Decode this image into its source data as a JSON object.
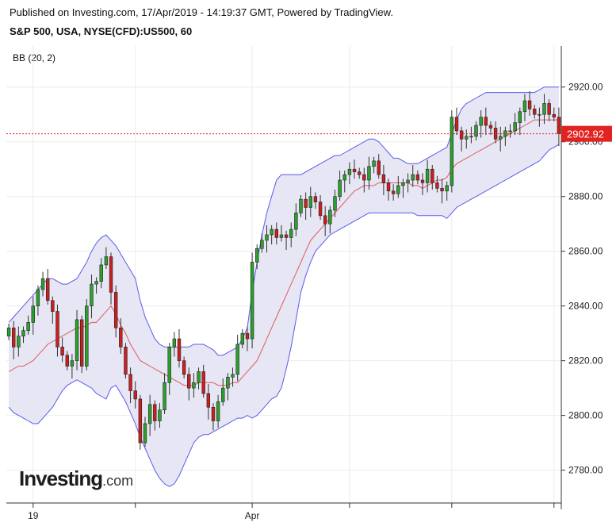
{
  "header": {
    "published": "Published on Investing.com, 17/Apr/2019 - 14:19:37 GMT, Powered by TradingView.",
    "instrument": "S&P 500, USA, NYSE(CFD):US500, 60"
  },
  "indicator": "BB (20, 2)",
  "logo": {
    "main": "Investing",
    "suffix": ".com"
  },
  "colors": {
    "up": "#2ca02c",
    "down": "#cc1f1f",
    "band": "#5b5bea",
    "band_fill": "#e6e6f5",
    "basis": "#e05a5a",
    "price_line": "#e32222"
  },
  "chart_data": {
    "type": "candlestick",
    "ylim": [
      2768,
      2935
    ],
    "yticks": [
      2780,
      2800,
      2820,
      2840,
      2860,
      2880,
      2900,
      2920
    ],
    "ytick_labels": [
      "2780.00",
      "2800.00",
      "2820.00",
      "2840.00",
      "2860.00",
      "2880.00",
      "2900.00",
      "2920.00"
    ],
    "xticks": [
      {
        "label": "19",
        "i": 5
      },
      {
        "label": "",
        "i": 26
      },
      {
        "label": "Apr",
        "i": 50
      },
      {
        "label": "",
        "i": 70
      },
      {
        "label": "",
        "i": 91
      },
      {
        "label": "",
        "i": 112
      }
    ],
    "current_price": 2902.92,
    "current_price_label": "2902.92",
    "closes": [
      2832,
      2825,
      2829,
      2831,
      2834,
      2840,
      2846,
      2850,
      2842,
      2838,
      2825,
      2822,
      2818,
      2820,
      2835,
      2818,
      2840,
      2848,
      2849,
      2855,
      2858,
      2845,
      2832,
      2825,
      2815,
      2809,
      2806,
      2790,
      2797,
      2804,
      2798,
      2802,
      2812,
      2825,
      2828,
      2820,
      2815,
      2810,
      2812,
      2816,
      2808,
      2803,
      2798,
      2805,
      2810,
      2814,
      2815,
      2826,
      2830,
      2828,
      2856,
      2861,
      2864,
      2866,
      2868,
      2865,
      2866,
      2865,
      2868,
      2874,
      2879,
      2876,
      2880,
      2878,
      2873,
      2870,
      2875,
      2880,
      2886,
      2888,
      2890,
      2889,
      2888,
      2886,
      2891,
      2893,
      2888,
      2885,
      2882,
      2881,
      2884,
      2885,
      2886,
      2888,
      2886,
      2885,
      2890,
      2885,
      2883,
      2882,
      2884,
      2909,
      2904,
      2901,
      2902,
      2902,
      2906,
      2909,
      2906,
      2905,
      2901,
      2902,
      2904,
      2904,
      2907,
      2911,
      2915,
      2912,
      2910,
      2910,
      2914,
      2910,
      2909,
      2902.92
    ],
    "basis": [
      2816,
      2817,
      2818,
      2818,
      2819,
      2820,
      2822,
      2824,
      2826,
      2827,
      2828,
      2829,
      2830,
      2831,
      2832,
      2832,
      2833,
      2834,
      2834,
      2836,
      2838,
      2840,
      2837,
      2833,
      2830,
      2826,
      2823,
      2820,
      2819,
      2818,
      2817,
      2816,
      2815,
      2814,
      2813,
      2812,
      2811,
      2811,
      2811,
      2812,
      2812,
      2812,
      2812,
      2811,
      2811,
      2811,
      2812,
      2812,
      2814,
      2816,
      2818,
      2820,
      2824,
      2828,
      2832,
      2836,
      2840,
      2844,
      2848,
      2852,
      2856,
      2860,
      2864,
      2866,
      2868,
      2870,
      2872,
      2874,
      2876,
      2878,
      2880,
      2882,
      2883,
      2884,
      2884,
      2884,
      2885,
      2885,
      2885,
      2885,
      2885,
      2885,
      2885,
      2884,
      2884,
      2883,
      2884,
      2885,
      2886,
      2886,
      2887,
      2890,
      2892,
      2893,
      2894,
      2895,
      2896,
      2897,
      2898,
      2899,
      2900,
      2901,
      2902,
      2903,
      2904,
      2905,
      2906,
      2907,
      2908,
      2908,
      2908,
      2908,
      2908,
      2908
    ],
    "upper": [
      2834,
      2836,
      2838,
      2840,
      2842,
      2844,
      2846,
      2848,
      2850,
      2850,
      2849,
      2848,
      2848,
      2849,
      2850,
      2853,
      2856,
      2860,
      2863,
      2865,
      2866,
      2864,
      2862,
      2859,
      2856,
      2853,
      2850,
      2842,
      2836,
      2832,
      2828,
      2826,
      2825,
      2825,
      2825,
      2825,
      2825,
      2825,
      2826,
      2826,
      2826,
      2825,
      2824,
      2822,
      2822,
      2823,
      2824,
      2825,
      2828,
      2832,
      2845,
      2856,
      2866,
      2874,
      2880,
      2886,
      2888,
      2888,
      2888,
      2888,
      2888,
      2889,
      2890,
      2891,
      2892,
      2893,
      2894,
      2895,
      2895,
      2896,
      2897,
      2898,
      2899,
      2900,
      2901,
      2901,
      2900,
      2898,
      2896,
      2894,
      2894,
      2893,
      2892,
      2892,
      2892,
      2893,
      2894,
      2895,
      2896,
      2897,
      2898,
      2903,
      2908,
      2912,
      2914,
      2915,
      2916,
      2917,
      2918,
      2918,
      2918,
      2918,
      2918,
      2918,
      2918,
      2918,
      2918,
      2918,
      2918,
      2919,
      2920,
      2920,
      2920,
      2920
    ],
    "lower": [
      2803,
      2801,
      2800,
      2799,
      2798,
      2797,
      2797,
      2799,
      2801,
      2803,
      2806,
      2809,
      2811,
      2812,
      2813,
      2812,
      2811,
      2810,
      2808,
      2807,
      2806,
      2810,
      2811,
      2808,
      2805,
      2801,
      2797,
      2792,
      2788,
      2784,
      2780,
      2777,
      2775,
      2774,
      2775,
      2778,
      2782,
      2786,
      2790,
      2792,
      2793,
      2793,
      2794,
      2795,
      2796,
      2797,
      2798,
      2799,
      2799,
      2800,
      2799,
      2800,
      2802,
      2804,
      2806,
      2807,
      2810,
      2817,
      2825,
      2835,
      2845,
      2851,
      2856,
      2860,
      2862,
      2864,
      2866,
      2867,
      2868,
      2869,
      2870,
      2871,
      2872,
      2873,
      2874,
      2874,
      2874,
      2874,
      2874,
      2874,
      2874,
      2874,
      2874,
      2874,
      2873,
      2873,
      2873,
      2873,
      2873,
      2873,
      2872,
      2874,
      2876,
      2877,
      2878,
      2879,
      2880,
      2881,
      2882,
      2883,
      2884,
      2885,
      2886,
      2887,
      2888,
      2889,
      2890,
      2891,
      2892,
      2893,
      2895,
      2897,
      2898,
      2899
    ]
  }
}
